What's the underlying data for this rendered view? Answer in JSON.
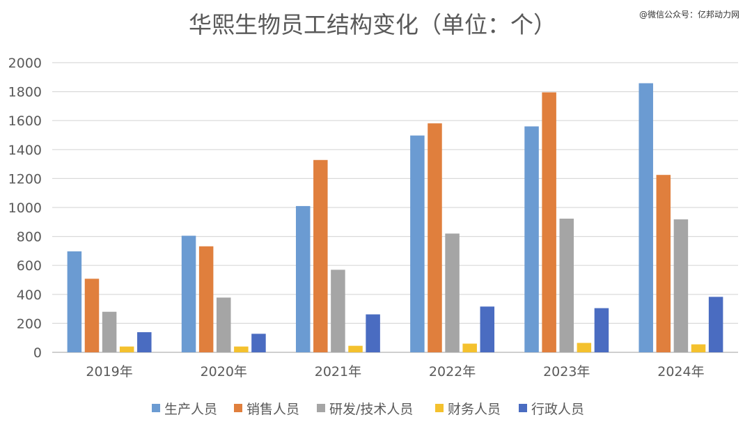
{
  "watermark": "@微信公众号：亿邦动力网",
  "colors": {
    "生产人员": "#6b9bd2",
    "销售人员": "#e07f3d",
    "研发/技术人员": "#a5a5a5",
    "财务人员": "#f4c12e",
    "行政人员": "#4a6cc1",
    "grid": "#d9d9d9",
    "text": "#595959"
  },
  "chart_data": {
    "type": "bar",
    "title": "华熙生物员工结构变化（单位：个）",
    "categories": [
      "2019年",
      "2020年",
      "2021年",
      "2022年",
      "2023年",
      "2024年"
    ],
    "series": [
      {
        "name": "生产人员",
        "values": [
          697,
          805,
          1010,
          1497,
          1560,
          1858
        ]
      },
      {
        "name": "销售人员",
        "values": [
          508,
          732,
          1328,
          1581,
          1795,
          1225
        ]
      },
      {
        "name": "研发/技术人员",
        "values": [
          280,
          378,
          570,
          820,
          923,
          918
        ]
      },
      {
        "name": "财务人员",
        "values": [
          40,
          40,
          45,
          60,
          65,
          55
        ]
      },
      {
        "name": "行政人员",
        "values": [
          139,
          128,
          262,
          316,
          305,
          383
        ]
      }
    ],
    "ylim": [
      0,
      2000
    ],
    "yticks": [
      "0",
      "200",
      "400",
      "600",
      "800",
      "1000",
      "1200",
      "1400",
      "1600",
      "1800",
      "2000"
    ],
    "grid": true,
    "legend_position": "bottom"
  }
}
